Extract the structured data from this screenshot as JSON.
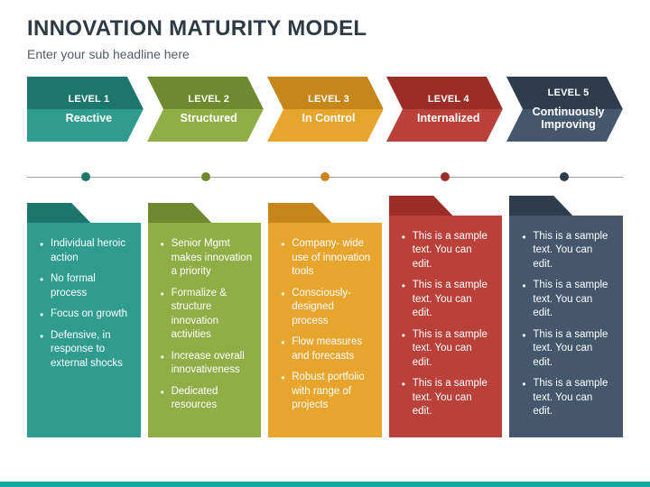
{
  "title": "INNOVATION MATURITY MODEL",
  "subtitle": "Enter your sub headline here",
  "footer_color": "#12a89d",
  "timeline": {
    "line_color": "#9aa0a6",
    "dot_size": 10
  },
  "levels": [
    {
      "level_label": "LEVEL 1",
      "name": "Reactive",
      "dark": "#1c766b",
      "light": "#2f9c8f",
      "bullets": [
        "Individual heroic action",
        "No formal process",
        "Focus on growth",
        "Defensive, in response to external shocks"
      ]
    },
    {
      "level_label": "LEVEL 2",
      "name": "Structured",
      "dark": "#6f8a2e",
      "light": "#8fae46",
      "bullets": [
        "Senior Mgmt makes innovation a priority",
        "Formalize & structure innovation activities",
        "Increase overall innovativeness",
        "Dedicated resources"
      ]
    },
    {
      "level_label": "LEVEL 3",
      "name": "In Control",
      "dark": "#c7861a",
      "light": "#e7a52e",
      "bullets": [
        "Company- wide use of innovation tools",
        "Consciously- designed process",
        "Flow measures and forecasts",
        "Robust portfolio with range of projects"
      ]
    },
    {
      "level_label": "LEVEL 4",
      "name": "Internalized",
      "dark": "#9b2d26",
      "light": "#b9413a",
      "bullets": [
        "This is a sample text. You can edit.",
        "This is a sample text. You can edit.",
        "This is a sample text. You can edit.",
        "This is a sample text. You can edit."
      ]
    },
    {
      "level_label": "LEVEL 5",
      "name": "Continuously Improving",
      "dark": "#2f3c4c",
      "light": "#44576c",
      "bullets": [
        "This is a sample text. You can edit.",
        "This is a sample text. You can edit.",
        "This is a sample text. You can edit.",
        "This is a sample text. You can edit."
      ]
    }
  ]
}
